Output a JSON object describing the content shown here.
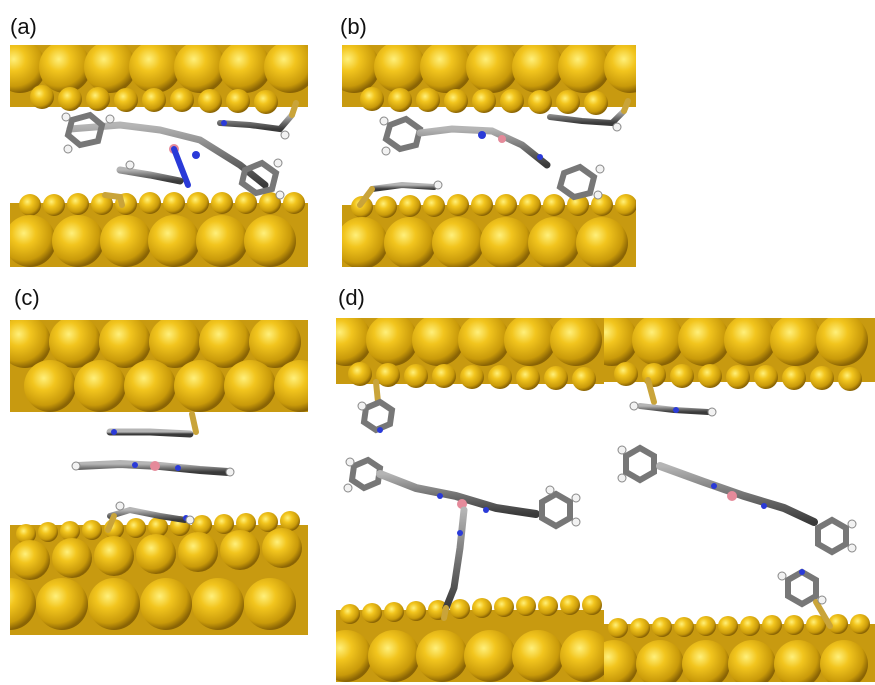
{
  "figure": {
    "panels": [
      {
        "id": "a",
        "label": "(a)"
      },
      {
        "id": "b",
        "label": "(b)"
      },
      {
        "id": "c",
        "label": "(c)"
      },
      {
        "id": "d",
        "label": "(d)"
      }
    ]
  },
  "colors": {
    "gold": "#e8b81c",
    "gold_dark": "#a57c06",
    "gold_light": "#ffe66b",
    "carbon": "#7d7d7d",
    "hydrogen": "#f2f2f2",
    "nitrogen": "#2a3ad8",
    "boron": "#e58a9a",
    "sulfur": "#c9a43a"
  }
}
